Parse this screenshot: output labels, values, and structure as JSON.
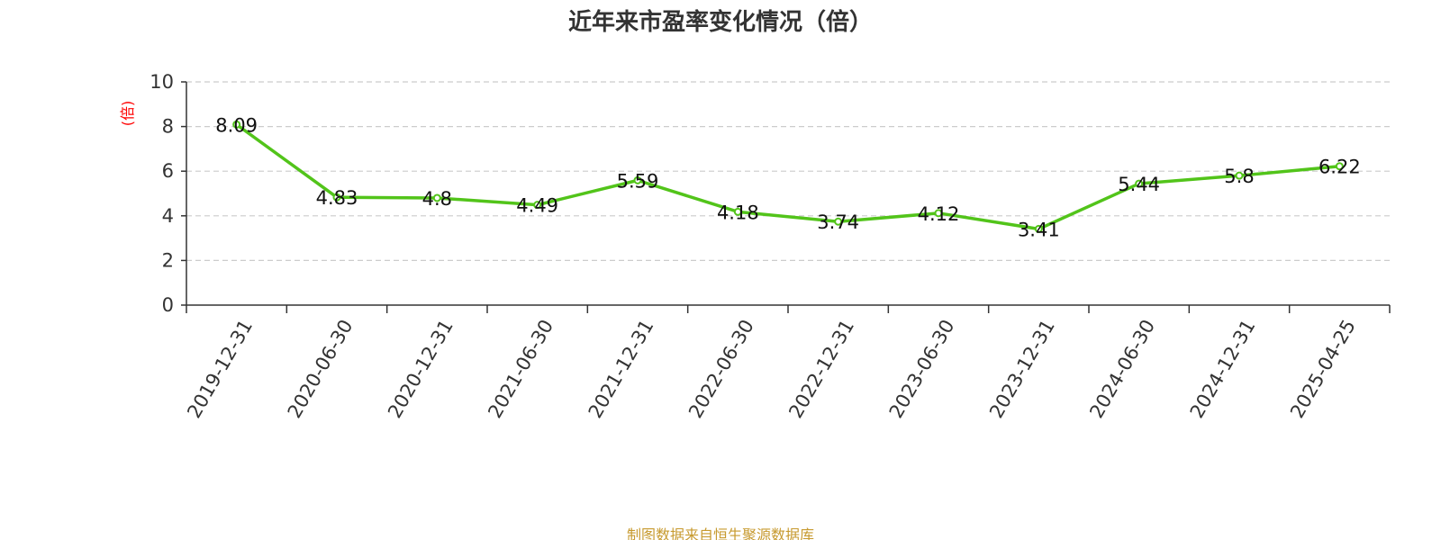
{
  "chart_data": {
    "type": "line",
    "title": "近年来市盈率变化情况（倍）",
    "ylabel": "(倍)",
    "xlabel": "",
    "categories": [
      "2019-12-31",
      "2020-06-30",
      "2020-12-31",
      "2021-06-30",
      "2021-12-31",
      "2022-06-30",
      "2022-12-31",
      "2023-06-30",
      "2023-12-31",
      "2024-06-30",
      "2024-12-31",
      "2025-04-25"
    ],
    "values": [
      8.09,
      4.83,
      4.8,
      4.49,
      5.59,
      4.18,
      3.74,
      4.12,
      3.41,
      5.44,
      5.8,
      6.22
    ],
    "value_labels": [
      "8.09",
      "4.83",
      "4.8",
      "4.49",
      "5.59",
      "4.18",
      "3.74",
      "4.12",
      "3.41",
      "5.44",
      "5.8",
      "6.22"
    ],
    "y_ticks": [
      0,
      2,
      4,
      6,
      8,
      10
    ],
    "y_tick_labels": [
      "0",
      "2",
      "4",
      "6",
      "8",
      "10"
    ],
    "ylim": [
      0,
      10
    ],
    "grid": true,
    "legend": "none",
    "line_color": "#52c41a",
    "marker_fill": "#ffffff"
  },
  "footer": {
    "source": "制图数据来自恒生聚源数据库"
  },
  "colors": {
    "title": "#333333",
    "ylabel": "#ff0000",
    "source": "#c79a2f",
    "grid": "#cccccc",
    "axis": "#333333"
  }
}
